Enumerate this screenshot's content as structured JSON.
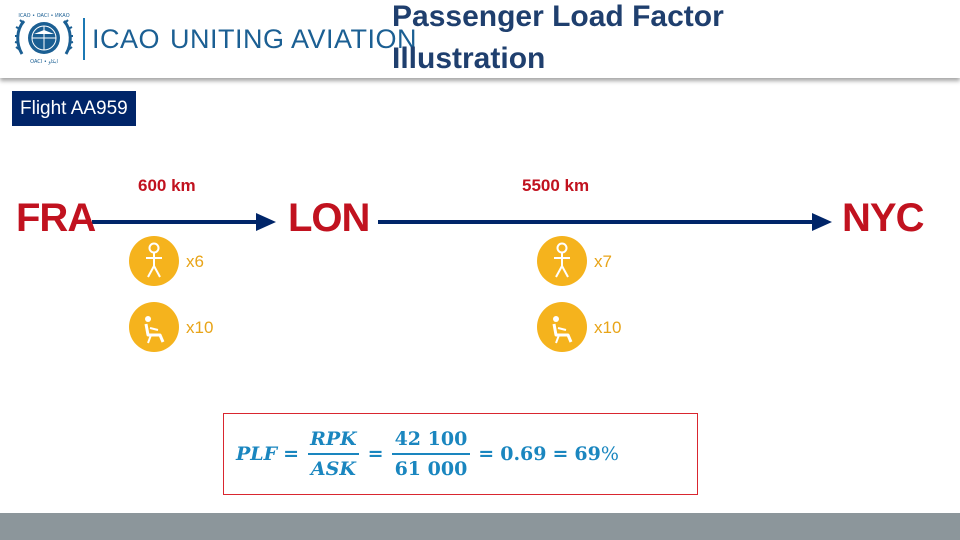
{
  "header": {
    "org": "ICAO",
    "slogan": "UNITING AVIATION",
    "title": "Passenger Load Factor Illustration"
  },
  "flight": {
    "label": "Flight AA959"
  },
  "route": {
    "cities": [
      "FRA",
      "LON",
      "NYC"
    ],
    "legs": [
      {
        "distance": "600 km",
        "passengers": "x6",
        "seats": "x10"
      },
      {
        "distance": "5500 km",
        "passengers": "x7",
        "seats": "x10"
      }
    ]
  },
  "icons": {
    "passenger": "person-icon",
    "seat": "seat-icon"
  },
  "formula": {
    "lhs": "PLF",
    "eq1": "=",
    "num1": "RPK",
    "den1": "ASK",
    "eq2": "=",
    "num2": "42 100",
    "den2": "61 000",
    "eq3": "=",
    "decimal": "0.69",
    "eq4": "=",
    "percent_value": "69",
    "percent_sign": "%"
  },
  "colors": {
    "brand_blue": "#1b5f93",
    "navy": "#002569",
    "city_red": "#c1121f",
    "icon_yellow": "#f5b31d",
    "formula_blue": "#1a86bf",
    "footer_gray": "#8c969b"
  }
}
